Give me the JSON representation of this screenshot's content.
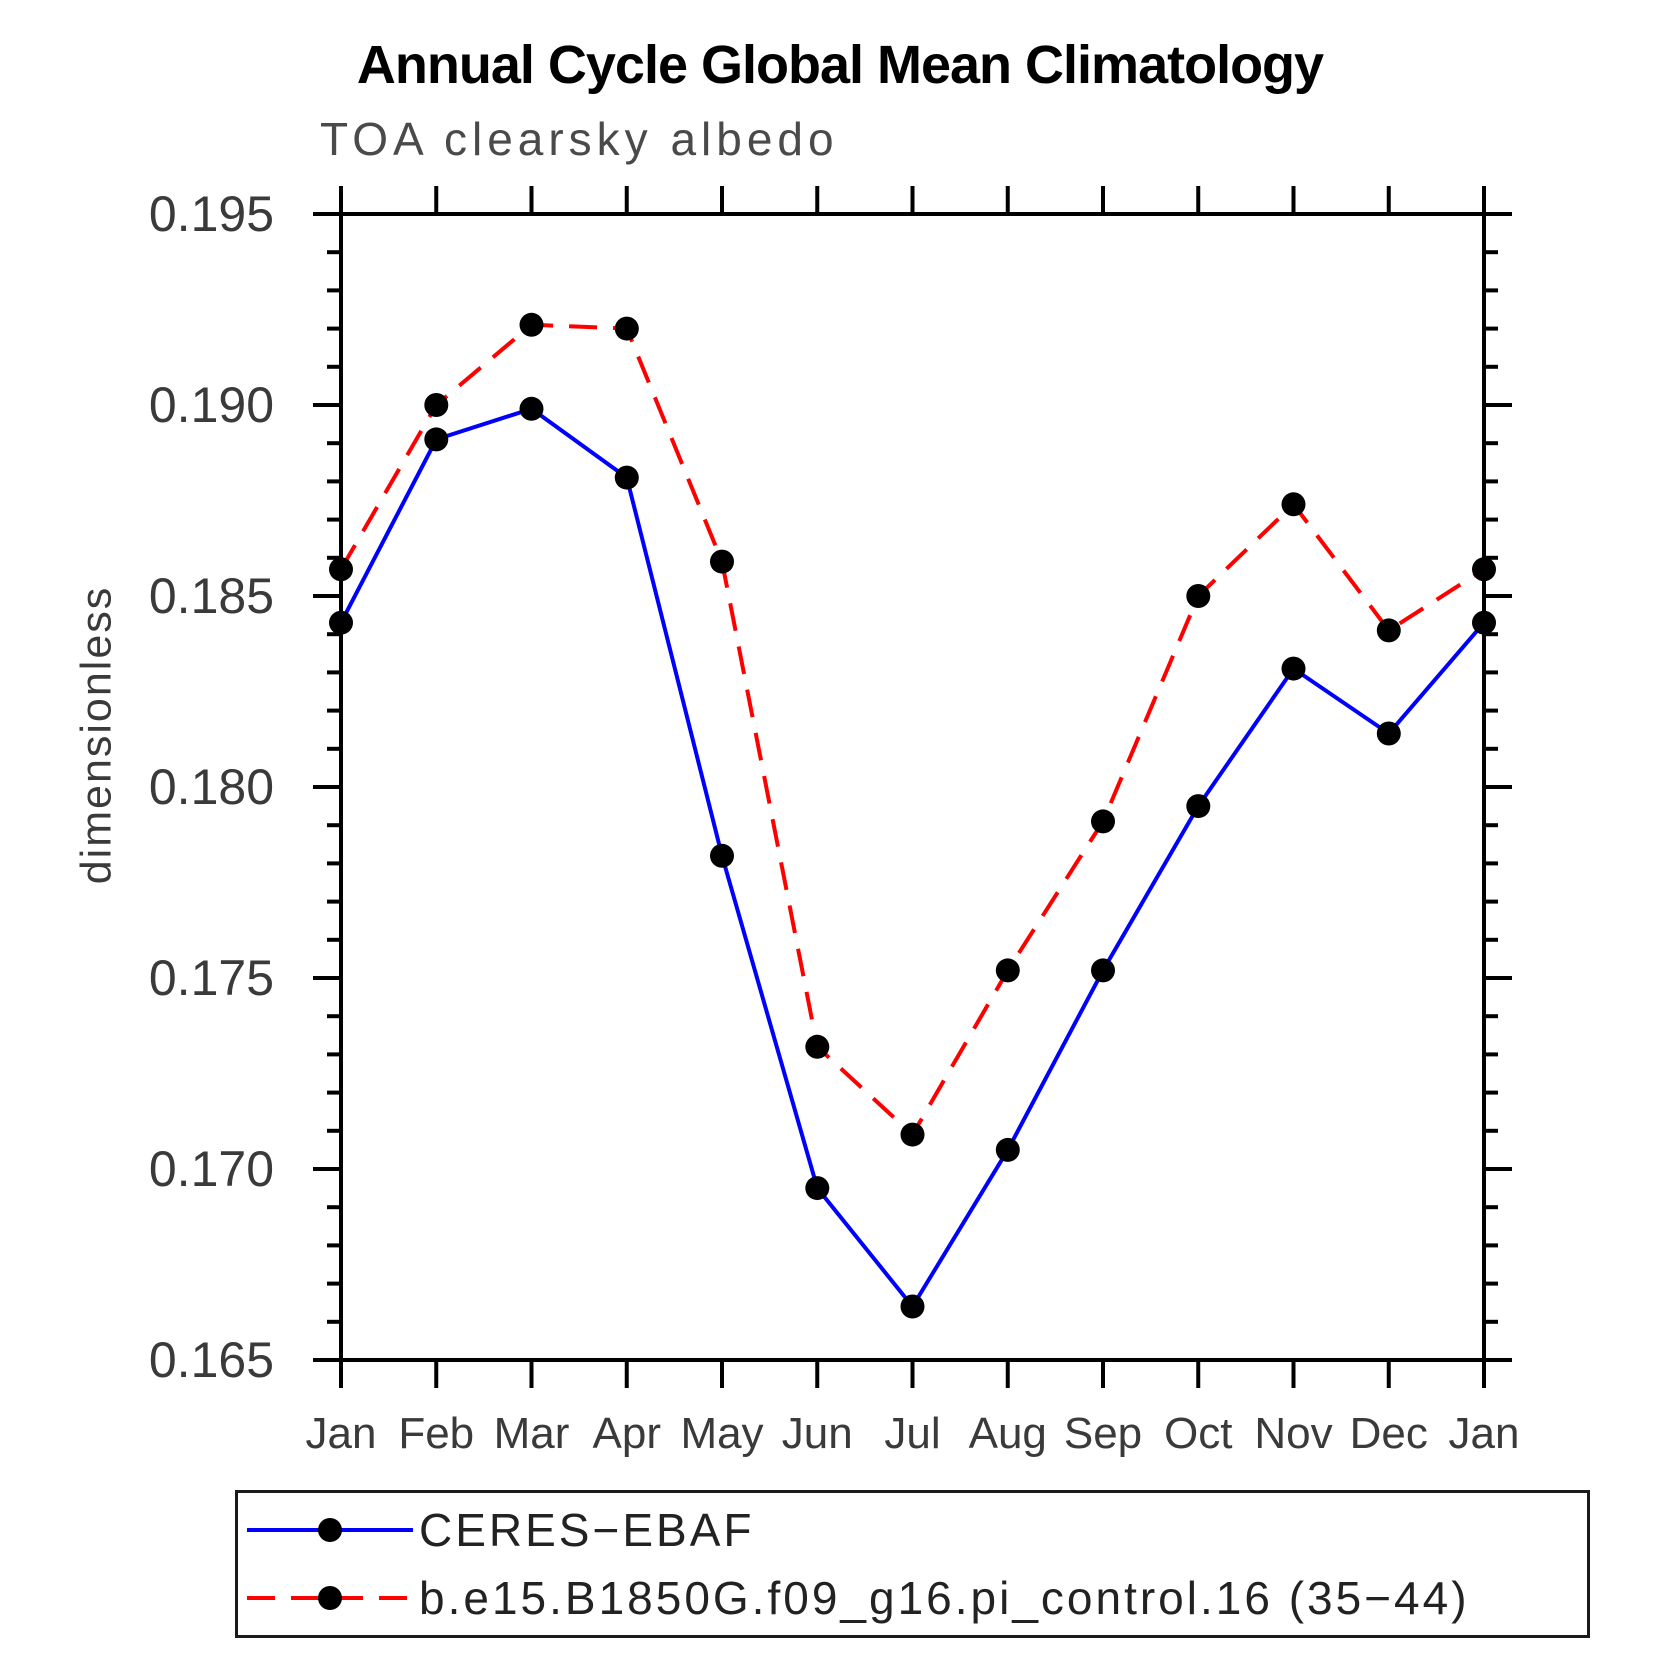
{
  "chart_data": {
    "type": "line",
    "title": "Annual Cycle Global Mean Climatology",
    "subtitle": "TOA clearsky albedo",
    "xlabel": "",
    "ylabel": "dimensionless",
    "categories": [
      "Jan",
      "Feb",
      "Mar",
      "Apr",
      "May",
      "Jun",
      "Jul",
      "Aug",
      "Sep",
      "Oct",
      "Nov",
      "Dec",
      "Jan"
    ],
    "ylim": [
      0.165,
      0.195
    ],
    "ytick_major_step": 0.005,
    "ytick_minor_step": 0.001,
    "ytick_labels": [
      "0.195",
      "0.190",
      "0.185",
      "0.180",
      "0.175",
      "0.170",
      "0.165"
    ],
    "grid": false,
    "legend_position": "bottom-left",
    "axis_color": "#000000",
    "series": [
      {
        "name": "CERES−EBAF",
        "color": "#0000ff",
        "style": "solid",
        "marker": "circle",
        "marker_color": "#000000",
        "values": [
          0.1843,
          0.1891,
          0.1899,
          0.1881,
          0.1782,
          0.1695,
          0.1664,
          0.1705,
          0.1752,
          0.1795,
          0.1831,
          0.1814,
          0.1843
        ]
      },
      {
        "name": "b.e15.B1850G.f09_g16.pi_control.16 (35−44)",
        "color": "#ff0000",
        "style": "dashed",
        "marker": "circle",
        "marker_color": "#000000",
        "values": [
          0.1857,
          0.19,
          0.1921,
          0.192,
          0.1859,
          0.1732,
          0.1709,
          0.1752,
          0.1791,
          0.185,
          0.1874,
          0.1841,
          0.1857
        ]
      }
    ]
  }
}
